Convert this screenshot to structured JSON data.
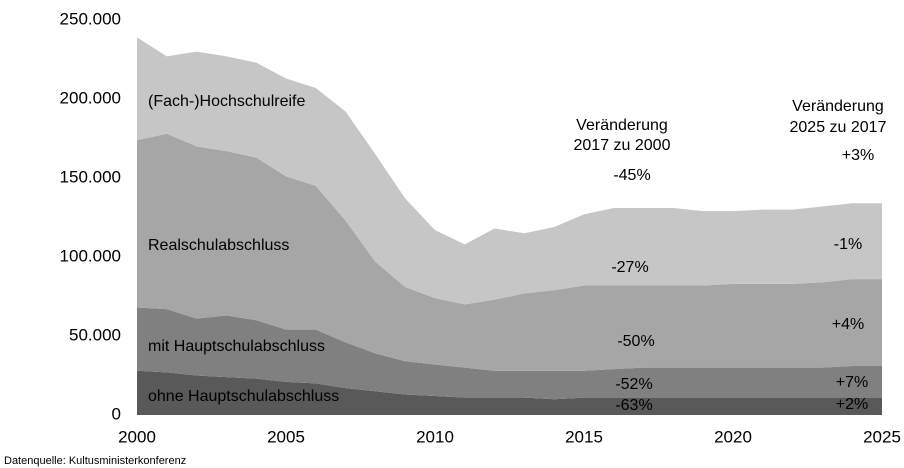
{
  "chart_data": {
    "type": "stacked-area",
    "x": [
      2000,
      2001,
      2002,
      2003,
      2004,
      2005,
      2006,
      2007,
      2008,
      2009,
      2010,
      2011,
      2012,
      2013,
      2014,
      2015,
      2016,
      2017,
      2018,
      2019,
      2020,
      2021,
      2022,
      2023,
      2024,
      2025
    ],
    "series": [
      {
        "name": "ohne Hauptschulabschluss",
        "color": "#595959",
        "values": [
          28000,
          27000,
          25000,
          24000,
          23000,
          21000,
          20000,
          17000,
          15000,
          13000,
          12000,
          11000,
          11000,
          11000,
          10000,
          11000,
          11000,
          11000,
          11000,
          11000,
          11000,
          11000,
          11000,
          11000,
          11000,
          11000
        ]
      },
      {
        "name": "mit Hauptschulabschluss",
        "color": "#808080",
        "values": [
          40000,
          40000,
          36000,
          39000,
          37000,
          33000,
          34000,
          29000,
          24000,
          21000,
          20000,
          19000,
          17000,
          17000,
          18000,
          17000,
          18000,
          19000,
          19000,
          19000,
          19000,
          19000,
          19000,
          19000,
          20000,
          20000
        ]
      },
      {
        "name": "Realschulabschluss",
        "color": "#a6a6a6",
        "values": [
          106000,
          111000,
          109000,
          104000,
          103000,
          97000,
          91000,
          77000,
          58000,
          47000,
          42000,
          40000,
          45000,
          49000,
          51000,
          54000,
          53000,
          52000,
          52000,
          52000,
          53000,
          53000,
          53000,
          54000,
          55000,
          55000
        ]
      },
      {
        "name": "(Fach-)Hochschulreife",
        "color": "#c6c6c6",
        "values": [
          65000,
          49000,
          60000,
          60000,
          60000,
          62000,
          62000,
          69000,
          68000,
          56000,
          43000,
          38000,
          45000,
          38000,
          40000,
          45000,
          49000,
          49000,
          49000,
          47000,
          46000,
          47000,
          47000,
          48000,
          48000,
          48000
        ]
      }
    ],
    "xlim": [
      2000,
      2025
    ],
    "xticks": [
      2000,
      2005,
      2010,
      2015,
      2020,
      2025
    ],
    "ylim": [
      0,
      250000
    ],
    "yticks": [
      0,
      {
        "value": 50000,
        "label": "50.000"
      },
      {
        "value": 100000,
        "label": "100.000"
      },
      {
        "value": 150000,
        "label": "150.000"
      },
      {
        "value": 200000,
        "label": "200.000"
      },
      {
        "value": 250000,
        "label": "250.000"
      }
    ],
    "annotations": [
      "Veränderung",
      "2017 zu 2000",
      "Veränderung",
      "2025 zu 2017",
      "-45%",
      "-27%",
      "-50%",
      "-52%",
      "-63%",
      "+3%",
      "-1%",
      "+4%",
      "+7%",
      "+2%"
    ],
    "source": "Datenquelle:  Kultusministerkonferenz"
  }
}
